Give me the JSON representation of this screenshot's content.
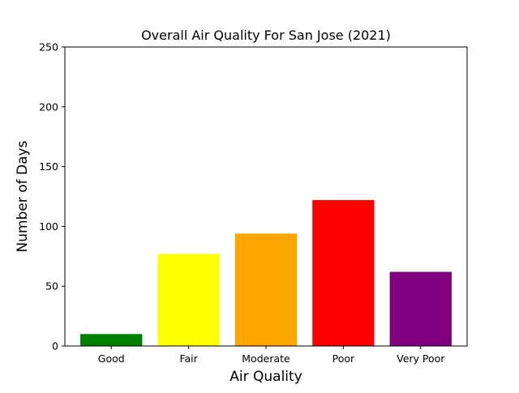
{
  "chart_data": {
    "type": "bar",
    "title": "Overall Air Quality For San Jose (2021)",
    "xlabel": "Air Quality",
    "ylabel": "Number of Days",
    "categories": [
      "Good",
      "Fair",
      "Moderate",
      "Poor",
      "Very Poor"
    ],
    "values": [
      10,
      77,
      94,
      122,
      62
    ],
    "colors": [
      "#008000",
      "#ffff00",
      "#ffa500",
      "#ff0000",
      "#800080"
    ],
    "ylim": [
      0,
      250
    ],
    "yticks": [
      0,
      50,
      100,
      150,
      200,
      250
    ],
    "grid": false,
    "legend": "none"
  }
}
